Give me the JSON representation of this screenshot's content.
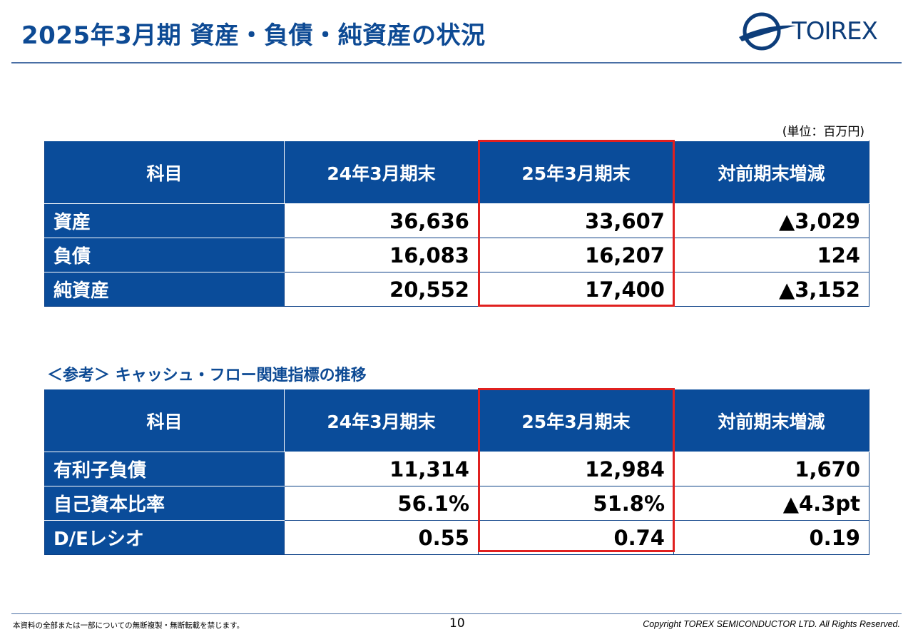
{
  "header": {
    "title": "2025年3月期 資産・負債・純資産の状況",
    "logo_text": "TOIREX",
    "brand_color": "#0d4a94"
  },
  "unit_note": "(単位：百万円)",
  "balance_table": {
    "headers": [
      "科目",
      "24年3月期末",
      "25年3月期末",
      "対前期末増減"
    ],
    "rows": [
      {
        "label": "資産",
        "prev": "36,636",
        "curr": "33,607",
        "diff": "▲3,029"
      },
      {
        "label": "負債",
        "prev": "16,083",
        "curr": "16,207",
        "diff": "124"
      },
      {
        "label": "純資産",
        "prev": "20,552",
        "curr": "17,400",
        "diff": "▲3,152"
      }
    ]
  },
  "reference_title": "＜参考＞ キャッシュ・フロー関連指標の推移",
  "cashflow_table": {
    "headers": [
      "科目",
      "24年3月期末",
      "25年3月期末",
      "対前期末増減"
    ],
    "rows": [
      {
        "label": "有利子負債",
        "prev": "11,314",
        "curr": "12,984",
        "diff": "1,670"
      },
      {
        "label": "自己資本比率",
        "prev": "56.1%",
        "curr": "51.8%",
        "diff": "▲4.3pt"
      },
      {
        "label": "D/Eレシオ",
        "prev": "0.55",
        "curr": "0.74",
        "diff": "0.19"
      }
    ]
  },
  "footer": {
    "notice": "本資料の全部または一部についての無断複製・無断転載を禁じます。",
    "page_number": "10",
    "copyright": "Copyright TOREX SEMICONDUCTOR LTD.  All Rights Reserved."
  },
  "colors": {
    "header_fill": "#0a4c9a",
    "highlight": "#e0201f"
  }
}
